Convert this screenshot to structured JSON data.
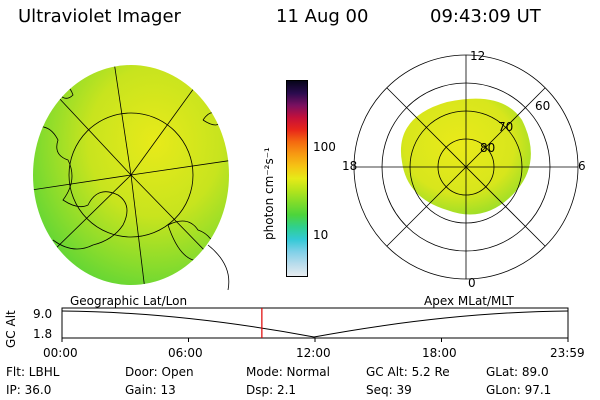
{
  "header": {
    "instrument": "Ultraviolet Imager",
    "date": "11 Aug 00",
    "time": "09:43:09 UT"
  },
  "colorbar": {
    "unit_label": "photon cm⁻²s⁻¹",
    "ticks": [
      "100",
      "10"
    ],
    "colors": [
      "#e8ecf0",
      "#b8dcec",
      "#7fd0e8",
      "#33c9d6",
      "#2fd08f",
      "#4cd43c",
      "#7fdc2a",
      "#b4e41c",
      "#e6ea18",
      "#f6c414",
      "#f79a12",
      "#f46a10",
      "#e8261a",
      "#c5103a",
      "#7a1060",
      "#2a0b4e",
      "#07051a"
    ]
  },
  "polar_plot": {
    "mlat_labels": [
      "80",
      "70",
      "60"
    ],
    "mlt_labels": [
      "12",
      "18",
      "6",
      "0"
    ]
  },
  "timeline": {
    "left_title": "Geographic Lat/Lon",
    "right_title": "Apex MLat/MLT",
    "axis_label": "GC Alt",
    "y_ticks": [
      "9.0",
      "1.8"
    ],
    "x_ticks": [
      "00:00",
      "06:00",
      "12:00",
      "18:00",
      "23:59"
    ],
    "current_time_fraction": 0.395,
    "marker_color": "#e00000"
  },
  "footer": {
    "filter": "Flt: LBHL",
    "door": "Door: Open",
    "mode": "Mode: Normal",
    "gc_alt": "GC Alt: 5.2 Re",
    "glat": "GLat:  89.0",
    "ip": "IP: 36.0",
    "gain": "Gain: 13",
    "dsp": "Dsp:     2.1",
    "seq": "Seq: 39",
    "glon": "GLon:  97.1"
  }
}
